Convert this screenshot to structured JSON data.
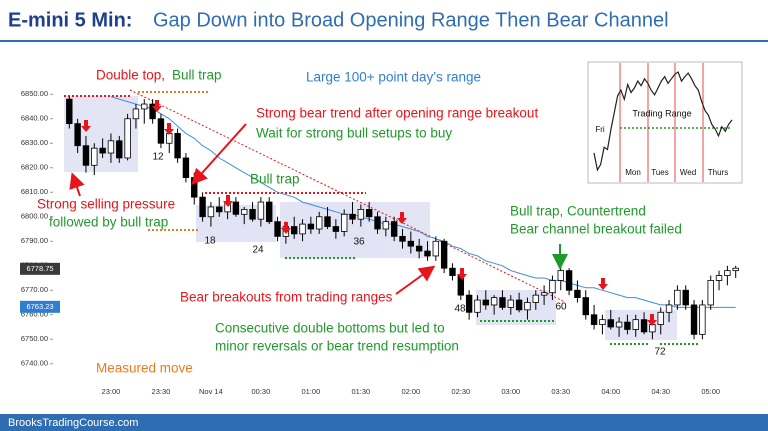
{
  "chart_data": [
    {
      "type": "candlestick",
      "title": "E-mini 5 Min:",
      "subtitle": "Gap Down into Broad Opening Range Then Bear Channel",
      "categories": [
        null,
        null,
        null,
        null,
        null,
        "23:00",
        null,
        null,
        null,
        null,
        null,
        "23:30",
        null,
        null,
        null,
        null,
        null,
        "Nov 14",
        null,
        null,
        null,
        null,
        null,
        "00:30",
        null,
        null,
        null,
        null,
        null,
        "01:00",
        null,
        null,
        null,
        null,
        null,
        "01:30",
        null,
        null,
        null,
        null,
        null,
        "02:00",
        null,
        null,
        null,
        null,
        null,
        "02:30",
        null,
        null,
        null,
        null,
        null,
        "03:00",
        null,
        null,
        null,
        null,
        null,
        "03:30",
        null,
        null,
        null,
        null,
        null,
        "04:00",
        null,
        null,
        null,
        null,
        null,
        "04:30",
        null,
        null,
        null,
        null,
        null,
        "05:00",
        null,
        null,
        null
      ],
      "open": [
        6848,
        6838,
        6829,
        6821,
        6828,
        6826,
        6831,
        6824,
        6840,
        6844,
        6846,
        6840,
        6830,
        6834,
        6824,
        6816,
        6808,
        6800,
        6804,
        6802,
        6806,
        6801,
        6803,
        6799,
        6806,
        6798,
        6792,
        6796,
        6793,
        6797,
        6795,
        6800,
        6796,
        6794,
        6801,
        6799,
        6803,
        6800,
        6795,
        6798,
        6792,
        6790,
        6788,
        6786,
        6784,
        6790,
        6779,
        6776,
        6768,
        6761,
        6766,
        6764,
        6767,
        6763,
        6766,
        6762,
        6765,
        6768,
        6769,
        6774,
        6778,
        6770,
        6767,
        6760,
        6756,
        6758,
        6755,
        6757,
        6754,
        6758,
        6753,
        6756,
        6761,
        6764,
        6770,
        6764,
        6752,
        6764,
        6774,
        6776,
        6778
      ],
      "high": [
        6849,
        6840,
        6833,
        6830,
        6832,
        6834,
        6833,
        6842,
        6846,
        6848,
        6848,
        6842,
        6838,
        6836,
        6826,
        6818,
        6810,
        6806,
        6808,
        6808,
        6808,
        6804,
        6806,
        6808,
        6808,
        6800,
        6798,
        6800,
        6799,
        6800,
        6802,
        6804,
        6799,
        6803,
        6806,
        6805,
        6806,
        6802,
        6800,
        6800,
        6795,
        6794,
        6791,
        6790,
        6792,
        6791,
        6781,
        6778,
        6770,
        6768,
        6770,
        6768,
        6770,
        6768,
        6769,
        6767,
        6770,
        6772,
        6776,
        6780,
        6779,
        6774,
        6770,
        6764,
        6760,
        6762,
        6759,
        6760,
        6760,
        6761,
        6758,
        6763,
        6766,
        6772,
        6772,
        6766,
        6766,
        6776,
        6778,
        6780,
        6780
      ],
      "low": [
        6836,
        6826,
        6818,
        6817,
        6824,
        6822,
        6822,
        6823,
        6836,
        6838,
        6838,
        6828,
        6826,
        6822,
        6814,
        6805,
        6798,
        6796,
        6800,
        6799,
        6800,
        6797,
        6798,
        6796,
        6797,
        6790,
        6789,
        6791,
        6790,
        6793,
        6793,
        6795,
        6791,
        6792,
        6797,
        6796,
        6798,
        6793,
        6792,
        6790,
        6787,
        6785,
        6783,
        6782,
        6782,
        6777,
        6774,
        6766,
        6758,
        6759,
        6762,
        6760,
        6762,
        6760,
        6761,
        6758,
        6762,
        6764,
        6766,
        6770,
        6768,
        6765,
        6758,
        6754,
        6752,
        6754,
        6751,
        6752,
        6751,
        6752,
        6750,
        6752,
        6757,
        6762,
        6762,
        6750,
        6750,
        6762,
        6770,
        6772,
        6775
      ],
      "close": [
        6838,
        6829,
        6821,
        6828,
        6826,
        6831,
        6824,
        6840,
        6844,
        6846,
        6840,
        6830,
        6834,
        6824,
        6816,
        6808,
        6800,
        6804,
        6802,
        6806,
        6801,
        6803,
        6799,
        6806,
        6798,
        6792,
        6796,
        6793,
        6797,
        6795,
        6800,
        6796,
        6794,
        6801,
        6799,
        6803,
        6800,
        6795,
        6798,
        6792,
        6790,
        6788,
        6786,
        6784,
        6790,
        6779,
        6776,
        6768,
        6761,
        6766,
        6764,
        6767,
        6763,
        6766,
        6762,
        6765,
        6768,
        6769,
        6774,
        6778,
        6770,
        6767,
        6760,
        6756,
        6758,
        6755,
        6757,
        6754,
        6758,
        6753,
        6756,
        6761,
        6764,
        6770,
        6764,
        6752,
        6764,
        6774,
        6776,
        6778,
        6779
      ],
      "bull_color": "#ffffff",
      "bear_color": "#000000",
      "ema": {
        "color": "#3d8fdc",
        "values": [
          null,
          null,
          null,
          null,
          null,
          6849,
          6848,
          6847,
          6846,
          6845,
          6844,
          6842,
          6840,
          6837,
          6834,
          6832,
          6829,
          6827,
          6824,
          6822,
          6820,
          6818,
          6816,
          6814,
          6812,
          6810,
          6809,
          6808,
          6806,
          6805,
          6804,
          6803,
          6802,
          6801,
          6801,
          6800,
          6799,
          6798,
          6797,
          6797,
          6796,
          6795,
          6794,
          6792,
          6791,
          6790,
          6788,
          6787,
          6785,
          6784,
          6782,
          6781,
          6780,
          6778,
          6777,
          6776,
          6775,
          6775,
          6774,
          6774,
          6773,
          6772,
          6771,
          6771,
          6770,
          6769,
          6768,
          6767,
          6767,
          6766,
          6765,
          6764,
          6764,
          6763,
          6763,
          6763,
          6763,
          6763,
          6763,
          6763,
          6763
        ]
      },
      "ylim": [
        6735,
        6855
      ],
      "yticks": [
        {
          "value": 6850,
          "label": "6850.00"
        },
        {
          "value": 6840,
          "label": "6840.00"
        },
        {
          "value": 6830,
          "label": "6830.00"
        },
        {
          "value": 6820,
          "label": "6820.00"
        },
        {
          "value": 6810,
          "label": "6810.00"
        },
        {
          "value": 6800,
          "label": "6800.00"
        },
        {
          "value": 6790,
          "label": "6790.00"
        },
        {
          "value": 6780,
          "label": "6780.00"
        },
        {
          "value": 6770,
          "label": "6770.00"
        },
        {
          "value": 6760,
          "label": "6760.00"
        },
        {
          "value": 6750,
          "label": "6750.00"
        },
        {
          "value": 6740,
          "label": "6740.00"
        }
      ],
      "price_labels": [
        {
          "value": 6778.75,
          "color": "#3a3a3a"
        },
        {
          "value": 6763.23,
          "color": "#2f7fd0"
        }
      ],
      "bar_numbers": [
        12,
        18,
        24,
        36,
        48,
        60,
        72
      ],
      "annotations": [
        {
          "text": "Double top,",
          "color": "#e8141b"
        },
        {
          "text": "Bull trap",
          "color": "#1f9a2a"
        },
        {
          "text": "Large 100+ point day’s range",
          "color": "#2f7fd0"
        },
        {
          "text": "Strong bear trend after opening range breakout",
          "color": "#e8141b"
        },
        {
          "text": "Wait for strong bull setups to buy",
          "color": "#1f9a2a"
        },
        {
          "text": "Bull trap",
          "color": "#1f9a2a"
        },
        {
          "text": "Strong selling pressure",
          "color": "#e8141b"
        },
        {
          "text": "followed by bull trap",
          "color": "#1f9a2a"
        },
        {
          "text": "Bull trap, Countertrend",
          "color": "#1f9a2a"
        },
        {
          "text": "Bear channel breakout failed",
          "color": "#1f9a2a"
        },
        {
          "text": "Bear breakouts from trading ranges",
          "color": "#e8141b"
        },
        {
          "text": "Consecutive double bottoms but led to",
          "color": "#1f9a2a"
        },
        {
          "text": "minor reversals or bear trend resumption",
          "color": "#1f9a2a"
        },
        {
          "text": "Measured move",
          "color": "#f07a1a"
        }
      ]
    },
    {
      "type": "line",
      "title": "Trading Range",
      "day_labels": [
        "Fri",
        "Mon",
        "Tues",
        "Wed",
        "Thurs"
      ],
      "color": "#222222",
      "values": [
        25,
        10,
        15,
        30,
        28,
        45,
        60,
        75,
        80,
        72,
        85,
        78,
        82,
        88,
        84,
        90,
        86,
        80,
        76,
        82,
        88,
        92,
        86,
        90,
        94,
        96,
        88,
        92,
        95,
        90,
        84,
        80,
        70,
        62,
        58,
        50,
        46,
        40,
        48,
        44,
        50,
        54
      ]
    }
  ],
  "footer": "BrooksTradingCourse.com"
}
